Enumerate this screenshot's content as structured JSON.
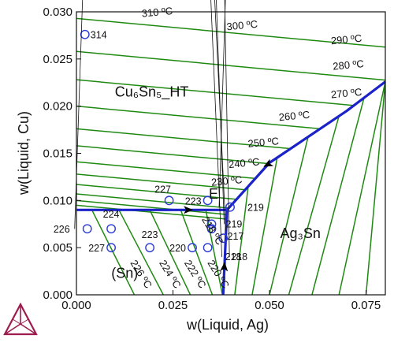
{
  "chart_data": {
    "type": "line",
    "title": "",
    "xlabel": "w(Liquid, Ag)",
    "ylabel": "w(Liquid, Cu)",
    "xlim": [
      0,
      0.08
    ],
    "ylim": [
      0,
      0.03
    ],
    "x_ticks": [
      "0.000",
      "0.025",
      "0.050",
      "0.075"
    ],
    "y_ticks": [
      "0.000",
      "0.005",
      "0.010",
      "0.015",
      "0.020",
      "0.025",
      "0.030"
    ],
    "grid": false,
    "colors": {
      "isotherm": "#1f8a12",
      "boundary": "#1a22c8",
      "point": "#2b3bd6",
      "logo": "#9c1d4e"
    },
    "phase_labels": [
      {
        "text": "Cu₆Sn₅_HT",
        "x": 0.0195,
        "y": 0.021
      },
      {
        "text": "Ag₃Sn",
        "x": 0.058,
        "y": 0.006
      },
      {
        "text": "(Sn)",
        "x": 0.0125,
        "y": 0.0018
      },
      {
        "text": "E",
        "x": 0.0355,
        "y": 0.0102
      }
    ],
    "boundaries": [
      {
        "name": "eutectic-valley-left",
        "points": [
          [
            0.0,
            0.009
          ],
          [
            0.039,
            0.009
          ]
        ]
      },
      {
        "name": "eutectic-valley-bottom",
        "points": [
          [
            0.038,
            0.0
          ],
          [
            0.039,
            0.009
          ]
        ]
      },
      {
        "name": "eutectic-valley-upper",
        "points": [
          [
            0.039,
            0.009
          ],
          [
            0.05,
            0.014
          ],
          [
            0.07,
            0.0195
          ],
          [
            0.08,
            0.0226
          ]
        ]
      }
    ],
    "isotherms_cu6sn5": [
      {
        "label": "310 ºC",
        "a": 0.0293,
        "b": 0.038
      },
      {
        "label": "300 ºC",
        "a": 0.0258,
        "b": 0.038
      },
      {
        "label": "290 ºC",
        "a": 0.0228,
        "b": 0.038
      },
      {
        "label": "280 ºC",
        "a": 0.02,
        "b": 0.038
      },
      {
        "label": "270 ºC",
        "a": 0.0176,
        "b": 0.038
      },
      {
        "label": "",
        "a": 0.0158,
        "b": 0.038
      },
      {
        "label": "260 ºC",
        "a": 0.0141,
        "b": 0.038
      },
      {
        "label": "",
        "a": 0.0128,
        "b": 0.038
      },
      {
        "label": "250 ºC",
        "a": 0.0117,
        "b": 0.038
      },
      {
        "label": "",
        "a": 0.0107,
        "b": 0.038
      },
      {
        "label": "240 ºC",
        "a": 0.01,
        "b": 0.038
      },
      {
        "label": "230 ºC",
        "a": 0.0095,
        "b": 0.038
      }
    ],
    "isotherms_ag3sn": [
      {
        "top_x": 0.0445,
        "bottom_x": 0.041
      },
      {
        "top_x": 0.052,
        "bottom_x": 0.0455
      },
      {
        "top_x": 0.06,
        "bottom_x": 0.05
      },
      {
        "top_x": 0.068,
        "bottom_x": 0.055
      },
      {
        "top_x": 0.0745,
        "bottom_x": 0.061
      },
      {
        "top_x": 0.08,
        "bottom_x": 0.068
      },
      {
        "top_x": 0.08,
        "bottom_x": 0.075
      }
    ],
    "isotherms_sn": [
      {
        "label": "226 ºC",
        "top_x": 0.004,
        "bottom_x": 0.015
      },
      {
        "label": "224 ºC",
        "top_x": 0.011,
        "bottom_x": 0.0225
      },
      {
        "label": "222 ºC",
        "top_x": 0.019,
        "bottom_x": 0.0295
      },
      {
        "label": "220 ºC",
        "top_x": 0.027,
        "bottom_x": 0.0352
      },
      {
        "label": "218 ºC",
        "top_x": 0.0335,
        "bottom_x": 0.0378
      }
    ],
    "points": [
      {
        "label": "314",
        "x": 0.0022,
        "y": 0.0276
      },
      {
        "label": "227",
        "x": 0.024,
        "y": 0.01
      },
      {
        "label": "223",
        "x": 0.034,
        "y": 0.01
      },
      {
        "label": "219",
        "x": 0.0398,
        "y": 0.0093
      },
      {
        "label": "226",
        "x": 0.0028,
        "y": 0.007
      },
      {
        "label": "224",
        "x": 0.009,
        "y": 0.007
      },
      {
        "label": "219",
        "x": 0.035,
        "y": 0.0075
      },
      {
        "label": "217",
        "x": 0.035,
        "y": 0.007
      },
      {
        "label": "227",
        "x": 0.009,
        "y": 0.005
      },
      {
        "label": "223",
        "x": 0.019,
        "y": 0.005
      },
      {
        "label": "220",
        "x": 0.03,
        "y": 0.005
      },
      {
        "label": "218",
        "x": 0.038,
        "y": 0.006
      },
      {
        "label": "218",
        "x": 0.034,
        "y": 0.005
      }
    ]
  }
}
